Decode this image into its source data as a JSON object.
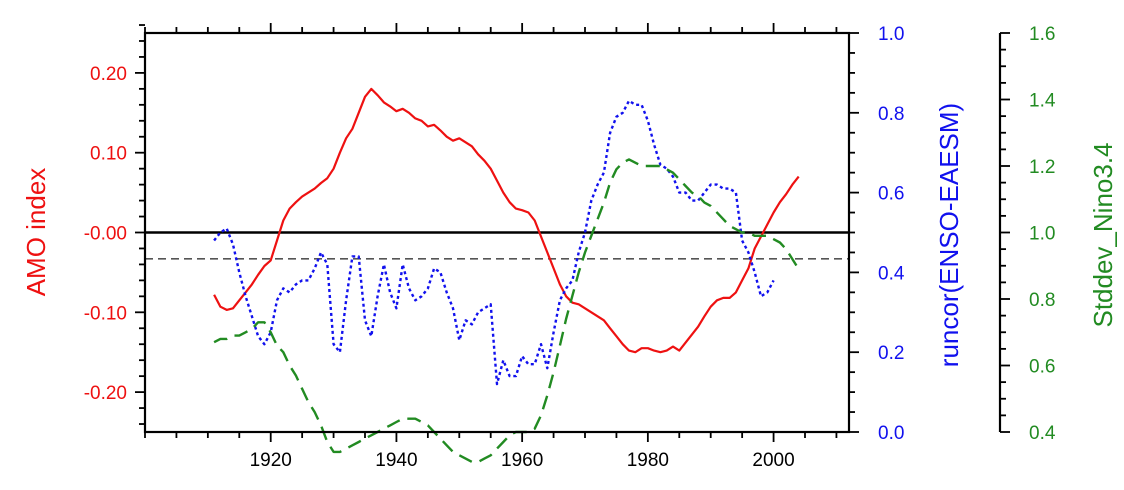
{
  "chart_data": {
    "type": "line",
    "title": "",
    "xlabel": "",
    "xlim": [
      1900,
      2012
    ],
    "x_ticks_major": [
      1920,
      1940,
      1960,
      1980,
      2000
    ],
    "x_ticks_minor_step": 5,
    "grid": false,
    "legend": "none",
    "axes": {
      "left": {
        "label": "AMO index",
        "color": "#ee1111",
        "ylim": [
          -0.25,
          0.25
        ],
        "ticks": [
          0.2,
          0.1,
          0.0,
          -0.1,
          -0.2
        ],
        "tick_labels": [
          "0.20",
          "0.10",
          "-0.00",
          "-0.10",
          "-0.20"
        ]
      },
      "right1": {
        "label": "runcor(ENSO-EAESM)",
        "color": "#1111ee",
        "ylim": [
          0.0,
          1.0
        ],
        "ticks": [
          1.0,
          0.8,
          0.6,
          0.4,
          0.2,
          0.0
        ],
        "tick_labels": [
          "1.0",
          "0.8",
          "0.6",
          "0.4",
          "0.2",
          "0.0"
        ]
      },
      "right2": {
        "label": "Stddev_Nino3.4",
        "color": "#228b22",
        "ylim": [
          0.4,
          1.6
        ],
        "ticks": [
          1.6,
          1.4,
          1.2,
          1.0,
          0.8,
          0.6,
          0.4
        ],
        "tick_labels": [
          "1.6",
          "1.4",
          "1.2",
          "1.0",
          "0.8",
          "0.6",
          "0.4"
        ]
      }
    },
    "reference_lines": [
      {
        "axis": "left",
        "value": 0.0,
        "style": "solid",
        "color": "#000000"
      },
      {
        "axis": "right1",
        "value": 0.434,
        "style": "dashed",
        "color": "#555555"
      }
    ],
    "series": [
      {
        "axis": "left",
        "color": "#ee1111",
        "style": "solid",
        "x": [
          1911,
          1912,
          1913,
          1914,
          1915,
          1916,
          1917,
          1918,
          1919,
          1920,
          1921,
          1922,
          1923,
          1924,
          1925,
          1926,
          1927,
          1928,
          1929,
          1930,
          1931,
          1932,
          1933,
          1934,
          1935,
          1936,
          1937,
          1938,
          1939,
          1940,
          1941,
          1942,
          1943,
          1944,
          1945,
          1946,
          1947,
          1948,
          1949,
          1950,
          1951,
          1952,
          1953,
          1954,
          1955,
          1956,
          1957,
          1958,
          1959,
          1960,
          1961,
          1962,
          1963,
          1964,
          1965,
          1966,
          1967,
          1968,
          1969,
          1970,
          1971,
          1972,
          1973,
          1974,
          1975,
          1976,
          1977,
          1978,
          1979,
          1980,
          1981,
          1982,
          1983,
          1984,
          1985,
          1986,
          1987,
          1988,
          1989,
          1990,
          1991,
          1992,
          1993,
          1994,
          1995,
          1996,
          1997,
          1998,
          1999,
          2000,
          2001,
          2002,
          2003,
          2004
        ],
        "y": [
          -0.078,
          -0.093,
          -0.097,
          -0.095,
          -0.085,
          -0.075,
          -0.065,
          -0.053,
          -0.042,
          -0.035,
          -0.01,
          0.015,
          0.03,
          0.038,
          0.045,
          0.05,
          0.055,
          0.062,
          0.068,
          0.08,
          0.1,
          0.118,
          0.13,
          0.15,
          0.17,
          0.18,
          0.172,
          0.163,
          0.158,
          0.152,
          0.155,
          0.15,
          0.143,
          0.14,
          0.133,
          0.135,
          0.128,
          0.12,
          0.115,
          0.118,
          0.113,
          0.108,
          0.098,
          0.09,
          0.08,
          0.065,
          0.05,
          0.038,
          0.03,
          0.028,
          0.025,
          0.015,
          -0.005,
          -0.025,
          -0.045,
          -0.065,
          -0.08,
          -0.088,
          -0.09,
          -0.095,
          -0.1,
          -0.105,
          -0.11,
          -0.12,
          -0.13,
          -0.14,
          -0.148,
          -0.15,
          -0.145,
          -0.145,
          -0.148,
          -0.15,
          -0.148,
          -0.143,
          -0.148,
          -0.138,
          -0.128,
          -0.118,
          -0.105,
          -0.093,
          -0.085,
          -0.082,
          -0.082,
          -0.075,
          -0.06,
          -0.045,
          -0.02,
          -0.005,
          0.01,
          0.025,
          0.038,
          0.048,
          0.06,
          0.07
        ]
      },
      {
        "axis": "right1",
        "color": "#1111ee",
        "style": "dotted",
        "x": [
          1911,
          1912,
          1913,
          1914,
          1915,
          1916,
          1917,
          1918,
          1919,
          1920,
          1921,
          1922,
          1923,
          1924,
          1925,
          1926,
          1927,
          1928,
          1929,
          1930,
          1931,
          1932,
          1933,
          1934,
          1935,
          1936,
          1937,
          1938,
          1939,
          1940,
          1941,
          1942,
          1943,
          1944,
          1945,
          1946,
          1947,
          1948,
          1949,
          1950,
          1951,
          1952,
          1953,
          1954,
          1955,
          1956,
          1957,
          1958,
          1959,
          1960,
          1961,
          1962,
          1963,
          1964,
          1965,
          1966,
          1967,
          1968,
          1969,
          1970,
          1971,
          1972,
          1973,
          1974,
          1975,
          1976,
          1977,
          1978,
          1979,
          1980,
          1981,
          1982,
          1983,
          1984,
          1985,
          1986,
          1987,
          1988,
          1989,
          1990,
          1991,
          1992,
          1993,
          1994,
          1995,
          1996,
          1997,
          1998,
          1999,
          2000
        ],
        "y": [
          0.48,
          0.5,
          0.51,
          0.47,
          0.4,
          0.34,
          0.29,
          0.24,
          0.22,
          0.25,
          0.33,
          0.36,
          0.35,
          0.37,
          0.38,
          0.38,
          0.41,
          0.45,
          0.42,
          0.22,
          0.2,
          0.33,
          0.44,
          0.44,
          0.28,
          0.24,
          0.34,
          0.42,
          0.35,
          0.31,
          0.42,
          0.36,
          0.33,
          0.34,
          0.36,
          0.41,
          0.4,
          0.35,
          0.31,
          0.23,
          0.28,
          0.27,
          0.3,
          0.31,
          0.32,
          0.12,
          0.18,
          0.14,
          0.14,
          0.19,
          0.17,
          0.17,
          0.22,
          0.16,
          0.25,
          0.33,
          0.36,
          0.38,
          0.45,
          0.5,
          0.58,
          0.62,
          0.65,
          0.75,
          0.79,
          0.8,
          0.83,
          0.82,
          0.82,
          0.78,
          0.72,
          0.67,
          0.66,
          0.64,
          0.6,
          0.6,
          0.58,
          0.58,
          0.6,
          0.62,
          0.62,
          0.61,
          0.61,
          0.6,
          0.48,
          0.45,
          0.4,
          0.34,
          0.35,
          0.38
        ]
      },
      {
        "axis": "right2",
        "color": "#228b22",
        "style": "dashed",
        "x": [
          1911,
          1912,
          1913,
          1914,
          1915,
          1916,
          1917,
          1918,
          1919,
          1920,
          1921,
          1922,
          1923,
          1924,
          1925,
          1926,
          1927,
          1928,
          1929,
          1930,
          1931,
          1932,
          1933,
          1934,
          1935,
          1936,
          1937,
          1938,
          1939,
          1940,
          1941,
          1942,
          1943,
          1944,
          1945,
          1946,
          1947,
          1948,
          1949,
          1950,
          1951,
          1952,
          1953,
          1954,
          1955,
          1956,
          1957,
          1958,
          1959,
          1960,
          1961,
          1962,
          1963,
          1964,
          1965,
          1966,
          1967,
          1968,
          1969,
          1970,
          1971,
          1972,
          1973,
          1974,
          1975,
          1976,
          1977,
          1978,
          1979,
          1980,
          1981,
          1982,
          1983,
          1984,
          1985,
          1986,
          1987,
          1988,
          1989,
          1990,
          1991,
          1992,
          1993,
          1994,
          1995,
          1996,
          1997,
          1998,
          1999,
          2000,
          2001,
          2002,
          2003,
          2004
        ],
        "y": [
          0.67,
          0.68,
          0.68,
          0.69,
          0.69,
          0.7,
          0.71,
          0.73,
          0.73,
          0.7,
          0.66,
          0.64,
          0.6,
          0.57,
          0.53,
          0.49,
          0.46,
          0.42,
          0.37,
          0.34,
          0.34,
          0.35,
          0.36,
          0.37,
          0.38,
          0.39,
          0.4,
          0.41,
          0.42,
          0.43,
          0.44,
          0.44,
          0.44,
          0.43,
          0.42,
          0.4,
          0.38,
          0.36,
          0.34,
          0.33,
          0.32,
          0.31,
          0.31,
          0.32,
          0.33,
          0.35,
          0.37,
          0.39,
          0.4,
          0.4,
          0.4,
          0.41,
          0.45,
          0.51,
          0.58,
          0.66,
          0.74,
          0.81,
          0.88,
          0.94,
          0.99,
          1.04,
          1.09,
          1.15,
          1.19,
          1.21,
          1.22,
          1.21,
          1.2,
          1.2,
          1.2,
          1.2,
          1.19,
          1.18,
          1.16,
          1.14,
          1.12,
          1.11,
          1.09,
          1.08,
          1.06,
          1.04,
          1.02,
          1.01,
          1.0,
          1.0,
          0.99,
          0.99,
          0.99,
          0.98,
          0.97,
          0.95,
          0.92,
          0.89
        ]
      }
    ]
  }
}
